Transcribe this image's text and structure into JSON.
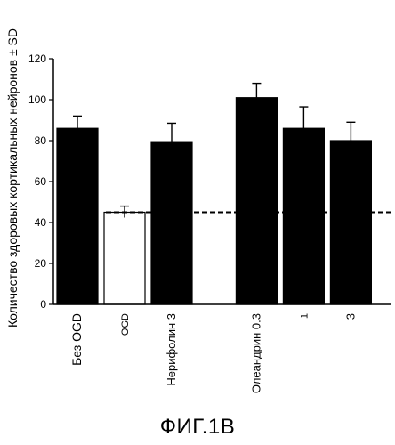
{
  "figure_caption": "ФИГ.1В",
  "chart_data": {
    "type": "bar",
    "ylabel": "Количество здоровых кортикальных нейронов ± SD",
    "ylim": [
      0,
      120
    ],
    "yticks": [
      0,
      20,
      40,
      60,
      80,
      100,
      120
    ],
    "reference_line": {
      "value": 45,
      "style": "dashed"
    },
    "categories": [
      "Без OGD",
      "OGD",
      "Нерифолин  3",
      "Олеандрин 0.3",
      "1",
      "3"
    ],
    "slots": [
      0,
      1,
      2,
      3.8,
      4.8,
      5.8
    ],
    "values": [
      86,
      45,
      79.5,
      101,
      86,
      80
    ],
    "errors": [
      6,
      3,
      9,
      7,
      10.5,
      9
    ],
    "fills": [
      "black",
      "white",
      "black",
      "black",
      "black",
      "black"
    ],
    "colors": {
      "bar_dark": "#000000",
      "bar_light": "#ffffff",
      "axis": "#000000"
    }
  }
}
